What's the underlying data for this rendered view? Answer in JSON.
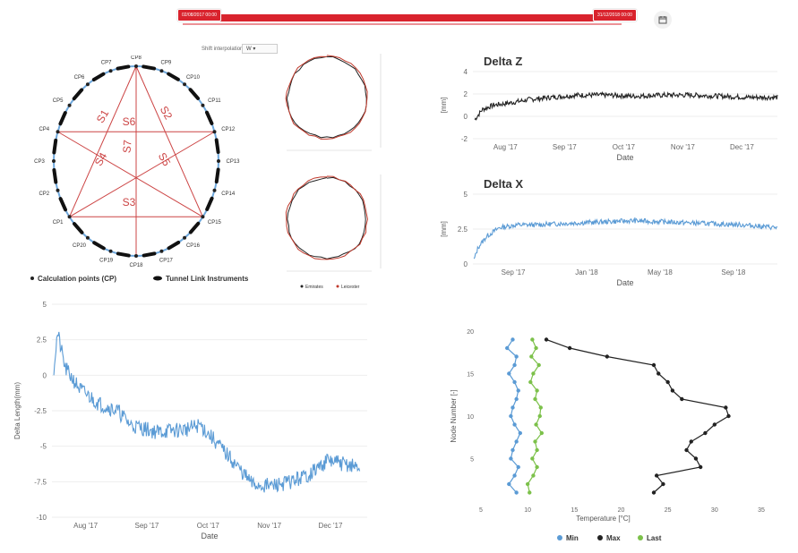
{
  "toolbar": {
    "start_date": "02/08/2017 00:00",
    "end_date": "31/12/2018 00:00",
    "calendar_icon": "calendar-icon"
  },
  "interpolation": {
    "label": "Shift interpolation:",
    "value": "W"
  },
  "diagram": {
    "points": [
      "CP1",
      "CP2",
      "CP3",
      "CP4",
      "CP5",
      "CP6",
      "CP7",
      "CP8",
      "CP9",
      "CP10",
      "CP11",
      "CP12",
      "CP13",
      "CP14",
      "CP15",
      "CP16",
      "CP17",
      "CP18",
      "CP19",
      "CP20"
    ],
    "segments": [
      "S1",
      "S2",
      "S3",
      "S4",
      "S5",
      "S6",
      "S7"
    ],
    "legend_calc": "Calculation points (CP)",
    "legend_instr": "Tunnel Link Instruments",
    "colors": {
      "ring": "#6fa8dc",
      "lines": "#cc4444",
      "instr": "#111111"
    }
  },
  "profiles": {
    "legend": [
      "Emirates",
      "Leicester"
    ]
  },
  "chart_data": [
    {
      "type": "line",
      "title": "Delta Z",
      "ylabel": "[mm]",
      "xlabel": "Date",
      "ylim": [
        -2,
        4
      ],
      "yticks": [
        "4",
        "2",
        "0",
        "-2"
      ],
      "xticks": [
        "Aug '17",
        "Sep '17",
        "Oct '17",
        "Nov '17",
        "Dec '17"
      ],
      "x_range": [
        "2017-07-21",
        "2017-12-31"
      ],
      "color": "#222222",
      "series": [
        {
          "x": [
            "2017-07-22",
            "2017-07-26",
            "2017-08-01",
            "2017-08-10",
            "2017-08-20",
            "2017-09-01",
            "2017-09-15",
            "2017-10-01",
            "2017-10-15",
            "2017-11-01",
            "2017-11-15",
            "2017-12-01",
            "2017-12-15",
            "2017-12-31"
          ],
          "values": [
            -0.3,
            0.6,
            1.0,
            1.2,
            1.5,
            1.7,
            1.9,
            1.9,
            1.8,
            1.9,
            1.9,
            1.8,
            1.7,
            1.7
          ]
        }
      ]
    },
    {
      "type": "line",
      "title": "Delta X",
      "ylabel": "[mm]",
      "xlabel": "Date",
      "ylim": [
        0,
        5
      ],
      "yticks": [
        "5",
        "2.5",
        "0"
      ],
      "xticks": [
        "Sep '17",
        "Jan '18",
        "May '18",
        "Sep '18"
      ],
      "x_range": [
        "2017-08-01",
        "2018-12-31"
      ],
      "color": "#5b9bd5",
      "series": [
        {
          "x": [
            "2017-08-03",
            "2017-08-10",
            "2017-08-25",
            "2017-09-15",
            "2017-10-15",
            "2017-11-15",
            "2018-01-01",
            "2018-03-01",
            "2018-05-01",
            "2018-07-01",
            "2018-09-01",
            "2018-11-01",
            "2018-12-31"
          ],
          "values": [
            0.3,
            1.2,
            2.0,
            2.6,
            2.8,
            2.8,
            2.9,
            3.0,
            3.1,
            3.0,
            2.9,
            2.8,
            2.6
          ]
        }
      ]
    },
    {
      "type": "line",
      "ylabel": "Delta Length(mm)",
      "xlabel": "Date",
      "ylim": [
        -10,
        5
      ],
      "yticks": [
        "5",
        "2.5",
        "0",
        "-2.5",
        "-5",
        "-7.5",
        "-10"
      ],
      "xticks": [
        "Aug '17",
        "Sep '17",
        "Oct '17",
        "Nov '17",
        "Dec '17"
      ],
      "x_range": [
        "2017-07-21",
        "2018-01-05"
      ],
      "color": "#5b9bd5",
      "series": [
        {
          "x": [
            "2017-07-22",
            "2017-07-24",
            "2017-07-28",
            "2017-08-05",
            "2017-08-15",
            "2017-08-25",
            "2017-09-01",
            "2017-09-15",
            "2017-10-01",
            "2017-10-08",
            "2017-10-15",
            "2017-10-25",
            "2017-11-05",
            "2017-11-15",
            "2017-11-25",
            "2017-12-05",
            "2017-12-15",
            "2017-12-25",
            "2018-01-01"
          ],
          "values": [
            0.5,
            3.0,
            0.5,
            -1.0,
            -2.0,
            -2.5,
            -3.5,
            -4.0,
            -3.8,
            -3.5,
            -4.5,
            -6.0,
            -7.7,
            -7.8,
            -7.5,
            -7.0,
            -6.0,
            -6.3,
            -6.5
          ]
        }
      ]
    },
    {
      "type": "line",
      "ylabel": "Node Number [-]",
      "xlabel": "Temperature [°C]",
      "xlim": [
        5,
        35
      ],
      "ylim": [
        0,
        20
      ],
      "xticks": [
        "5",
        "10",
        "15",
        "20",
        "25",
        "30",
        "35"
      ],
      "yticks": [
        "20",
        "15",
        "10",
        "5"
      ],
      "legend": "bottom",
      "series": [
        {
          "name": "Min",
          "color": "#5b9bd5",
          "x": [
            8.8,
            8.0,
            8.6,
            9.0,
            8.2,
            8.4,
            8.8,
            9.2,
            8.6,
            8.2,
            8.4,
            8.8,
            9.0,
            8.6,
            8.0,
            8.6,
            8.8,
            7.8,
            8.4
          ],
          "y": [
            1,
            2,
            3,
            4,
            5,
            6,
            7,
            8,
            9,
            10,
            11,
            12,
            13,
            14,
            15,
            16,
            17,
            18,
            19
          ]
        },
        {
          "name": "Max",
          "color": "#222222",
          "x": [
            23.5,
            24.5,
            23.8,
            28.5,
            28.0,
            27.0,
            27.5,
            29.0,
            30.0,
            31.5,
            31.2,
            26.5,
            25.5,
            25.0,
            24.0,
            23.5,
            18.5,
            14.5,
            12.0
          ],
          "y": [
            1,
            2,
            3,
            4,
            5,
            6,
            7,
            8,
            9,
            10,
            11,
            12,
            13,
            14,
            15,
            16,
            17,
            18,
            19
          ]
        },
        {
          "name": "Last",
          "color": "#7cc14a",
          "x": [
            10.2,
            10.0,
            10.6,
            11.0,
            10.5,
            11.0,
            10.8,
            11.5,
            10.9,
            11.3,
            11.4,
            10.8,
            11.0,
            10.3,
            10.6,
            11.2,
            10.4,
            10.9,
            10.5
          ],
          "y": [
            1,
            2,
            3,
            4,
            5,
            6,
            7,
            8,
            9,
            10,
            11,
            12,
            13,
            14,
            15,
            16,
            17,
            18,
            19
          ]
        }
      ]
    }
  ]
}
